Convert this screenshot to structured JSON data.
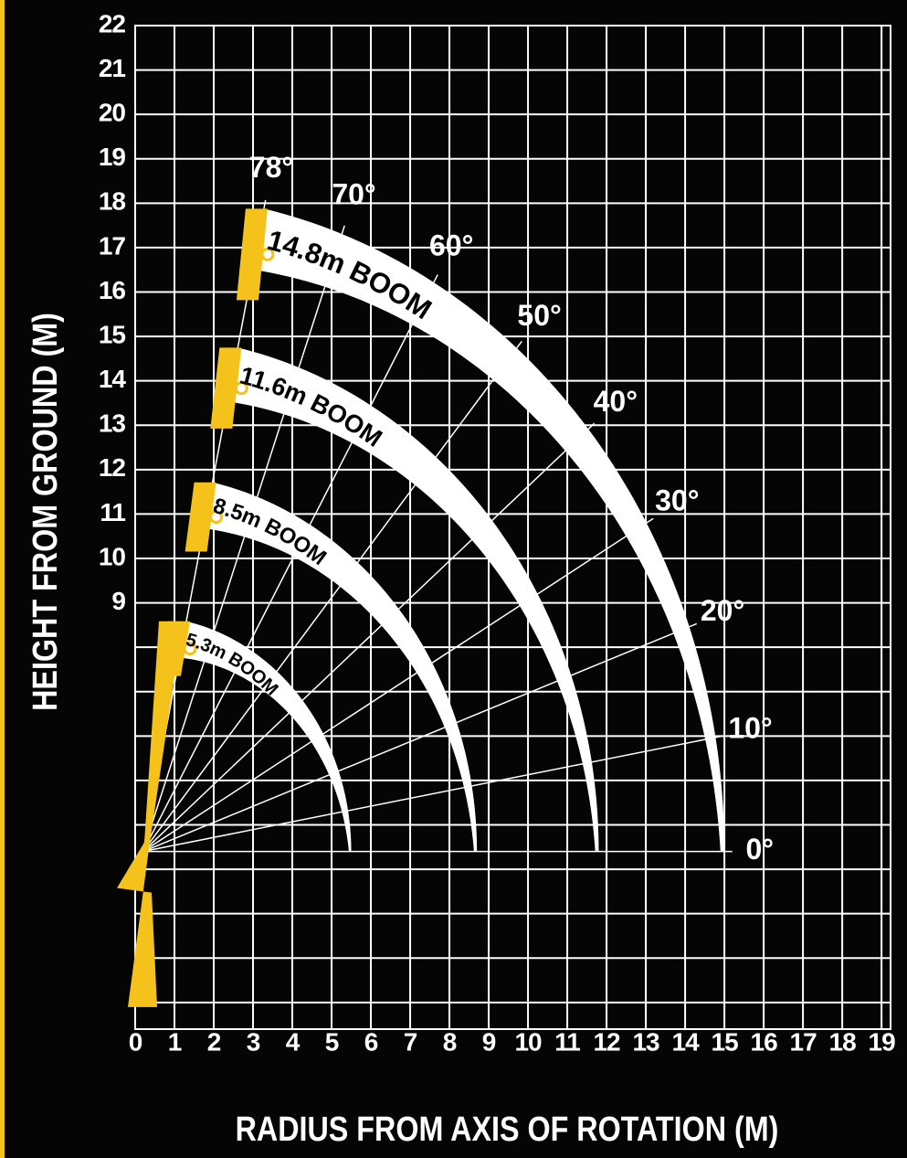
{
  "chart_data": {
    "type": "crane-range",
    "ylabel": "HEIGHT FROM GROUND (M)",
    "xlabel": "RADIUS FROM AXIS OF ROTATION (M)",
    "xlim": [
      0,
      19.23
    ],
    "ylim": [
      -0.6,
      22
    ],
    "xticks": [
      0,
      1,
      2,
      3,
      4,
      5,
      6,
      7,
      8,
      9,
      10,
      11,
      12,
      13,
      14,
      15,
      16,
      17,
      18,
      19
    ],
    "yticks": [
      9,
      10,
      11,
      12,
      13,
      14,
      15,
      16,
      17,
      18,
      19,
      20,
      21,
      22
    ],
    "ygrid": [
      0,
      1,
      2,
      3,
      4,
      5,
      6,
      7,
      8,
      9,
      10,
      11,
      12,
      13,
      14,
      15,
      16,
      17,
      18,
      19,
      20,
      21,
      22
    ],
    "grid": true,
    "pivot": [
      0.2,
      3.4
    ],
    "boom_color": "#ffffff",
    "crane_color": "#f5c21b",
    "booms": [
      {
        "label": "5.3m BOOM",
        "length": 5.3
      },
      {
        "label": "8.5m BOOM",
        "length": 8.5
      },
      {
        "label": "11.6m BOOM",
        "length": 11.6
      },
      {
        "label": "14.8m BOOM",
        "length": 14.8
      }
    ],
    "angles": [
      {
        "value": 78,
        "label": "78°"
      },
      {
        "value": 70,
        "label": "70°"
      },
      {
        "value": 60,
        "label": "60°"
      },
      {
        "value": 50,
        "label": "50°"
      },
      {
        "value": 40,
        "label": "40°"
      },
      {
        "value": 30,
        "label": "30°"
      },
      {
        "value": 20,
        "label": "20°"
      },
      {
        "value": 10,
        "label": "10°"
      },
      {
        "value": 0,
        "label": "0°"
      }
    ]
  }
}
